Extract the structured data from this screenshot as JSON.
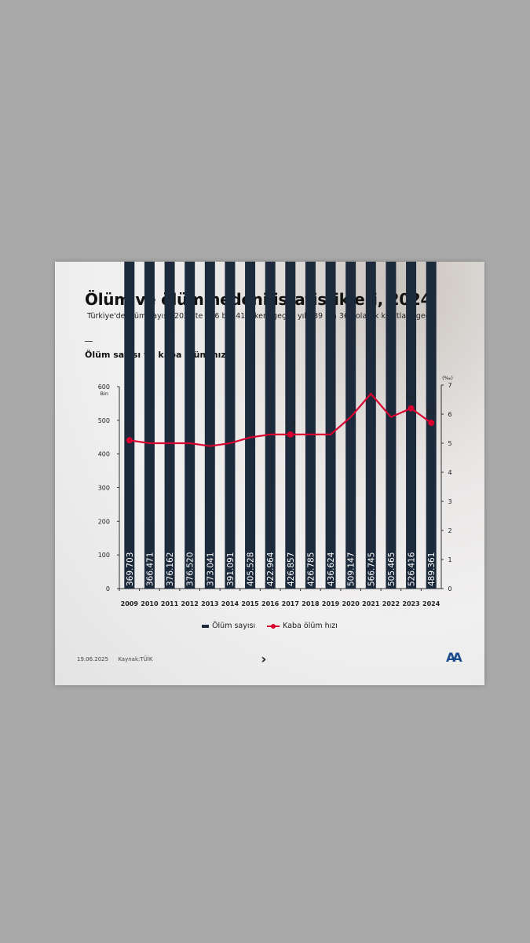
{
  "title": "Ölüm ve ölüm nedeni istatistikleri, 2024",
  "subtitle": "Türkiye'de ölüm sayısı, 2023'te 526 bin 416 iken, geçen yıl 489 bin 361 olarak kayıtlara geçti",
  "section_title": "Ölüm sayısı ve kaba ölüm hızı",
  "footer": {
    "date": "19.06.2025",
    "source": "Kaynak:TÜİK",
    "logo_text": "AA"
  },
  "chart_data": {
    "type": "bar+line",
    "categories": [
      "2009",
      "2010",
      "2011",
      "2012",
      "2013",
      "2014",
      "2015",
      "2016",
      "2017",
      "2018",
      "2019",
      "2020",
      "2021",
      "2022",
      "2023",
      "2024"
    ],
    "series": [
      {
        "name": "Ölüm sayısı",
        "type": "bar",
        "axis": "left",
        "color": "#1f2c3d",
        "values": [
          369703,
          366471,
          376162,
          376520,
          373041,
          391091,
          405528,
          422964,
          426857,
          426785,
          436624,
          509147,
          566745,
          505465,
          526416,
          489361
        ],
        "labels": [
          "369.703",
          "366.471",
          "376.162",
          "376.520",
          "373.041",
          "391.091",
          "405.528",
          "422.964",
          "426.857",
          "426.785",
          "436.624",
          "509.147",
          "566.745",
          "505.465",
          "526.416",
          "489.361"
        ]
      },
      {
        "name": "Kaba ölüm hızı",
        "type": "line",
        "axis": "right",
        "color": "#d8002f",
        "values": [
          5.1,
          5.0,
          5.0,
          5.0,
          4.9,
          5.0,
          5.2,
          5.3,
          5.3,
          5.3,
          5.3,
          5.9,
          6.7,
          5.9,
          6.2,
          5.7
        ],
        "marked": {
          "0": "5,1",
          "8": "5,3",
          "14": "6,2",
          "15": "5,7"
        }
      }
    ],
    "left_axis": {
      "unit": "Bin",
      "ticks": [
        "0",
        "100",
        "200",
        "300",
        "400",
        "500",
        "600"
      ],
      "range": [
        0,
        600
      ]
    },
    "right_axis": {
      "unit": "(‰)",
      "ticks": [
        "0",
        "1",
        "2",
        "3",
        "4",
        "5",
        "6",
        "7"
      ],
      "range": [
        0,
        7
      ]
    },
    "grid": false,
    "legend_position": "bottom"
  }
}
